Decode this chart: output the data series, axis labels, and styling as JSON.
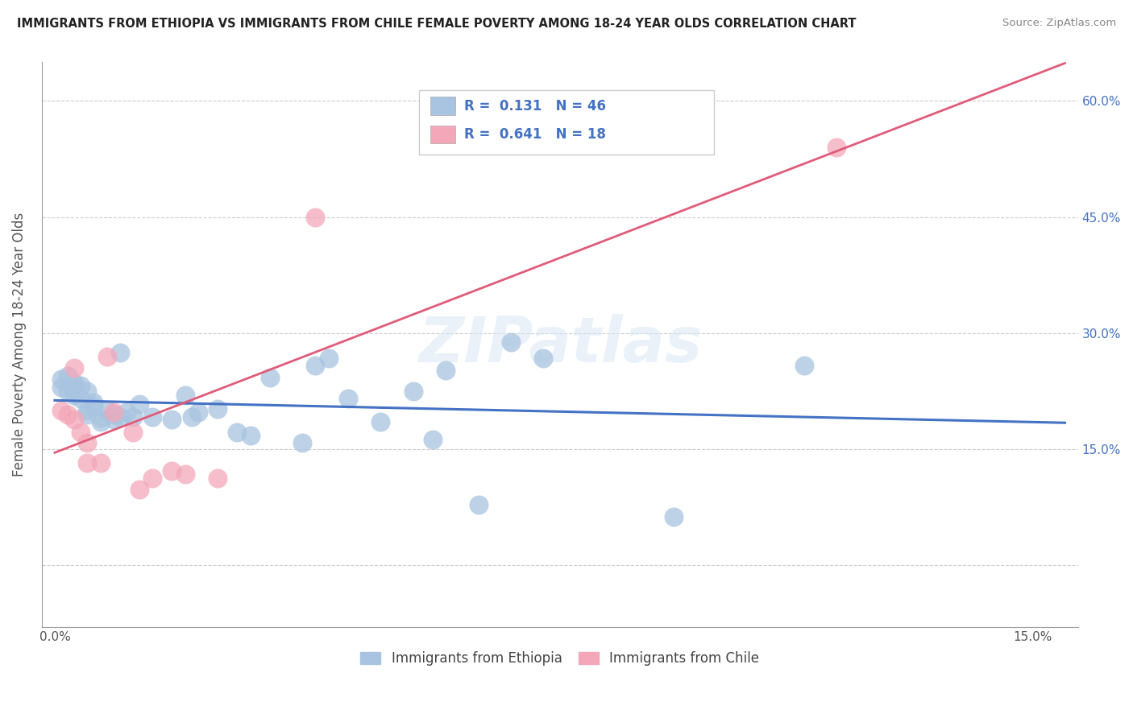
{
  "title": "IMMIGRANTS FROM ETHIOPIA VS IMMIGRANTS FROM CHILE FEMALE POVERTY AMONG 18-24 YEAR OLDS CORRELATION CHART",
  "source": "Source: ZipAtlas.com",
  "ylabel": "Female Poverty Among 18-24 Year Olds",
  "xlim": [
    0.0,
    0.15
  ],
  "ylim": [
    -0.08,
    0.65
  ],
  "yticks": [
    0.0,
    0.15,
    0.3,
    0.45,
    0.6
  ],
  "left_ytick_labels": [
    "",
    "",
    "",
    "",
    ""
  ],
  "right_ytick_labels": [
    "",
    "15.0%",
    "30.0%",
    "45.0%",
    "60.0%"
  ],
  "xtick_vals": [
    0.0,
    0.025,
    0.05,
    0.075,
    0.1,
    0.125,
    0.15
  ],
  "xtick_labels": [
    "0.0%",
    "",
    "",
    "",
    "",
    "",
    "15.0%"
  ],
  "ethiopia_R": 0.131,
  "ethiopia_N": 46,
  "chile_R": 0.641,
  "chile_N": 18,
  "ethiopia_color": "#a8c4e0",
  "ethiopia_line_color": "#4472c4",
  "chile_color": "#f4a7b9",
  "chile_line_color": "#e05c7a",
  "watermark": "ZIPatlas",
  "ethiopia_x": [
    0.001,
    0.001,
    0.002,
    0.002,
    0.003,
    0.003,
    0.003,
    0.004,
    0.004,
    0.005,
    0.005,
    0.005,
    0.006,
    0.006,
    0.007,
    0.007,
    0.008,
    0.009,
    0.009,
    0.01,
    0.01,
    0.011,
    0.012,
    0.013,
    0.015,
    0.018,
    0.02,
    0.021,
    0.022,
    0.025,
    0.028,
    0.03,
    0.033,
    0.038,
    0.04,
    0.042,
    0.045,
    0.05,
    0.055,
    0.058,
    0.06,
    0.065,
    0.07,
    0.075,
    0.095,
    0.115
  ],
  "ethiopia_y": [
    0.24,
    0.23,
    0.245,
    0.225,
    0.235,
    0.228,
    0.22,
    0.232,
    0.215,
    0.225,
    0.2,
    0.195,
    0.21,
    0.205,
    0.19,
    0.185,
    0.2,
    0.195,
    0.188,
    0.275,
    0.192,
    0.198,
    0.192,
    0.208,
    0.192,
    0.188,
    0.22,
    0.192,
    0.198,
    0.202,
    0.172,
    0.168,
    0.242,
    0.158,
    0.258,
    0.268,
    0.215,
    0.185,
    0.225,
    0.162,
    0.252,
    0.078,
    0.288,
    0.268,
    0.062,
    0.258
  ],
  "chile_x": [
    0.001,
    0.002,
    0.003,
    0.003,
    0.004,
    0.005,
    0.005,
    0.007,
    0.008,
    0.009,
    0.012,
    0.013,
    0.015,
    0.018,
    0.02,
    0.025,
    0.04,
    0.12
  ],
  "chile_y": [
    0.2,
    0.195,
    0.255,
    0.188,
    0.172,
    0.158,
    0.132,
    0.132,
    0.27,
    0.198,
    0.172,
    0.098,
    0.112,
    0.122,
    0.118,
    0.112,
    0.45,
    0.54
  ]
}
